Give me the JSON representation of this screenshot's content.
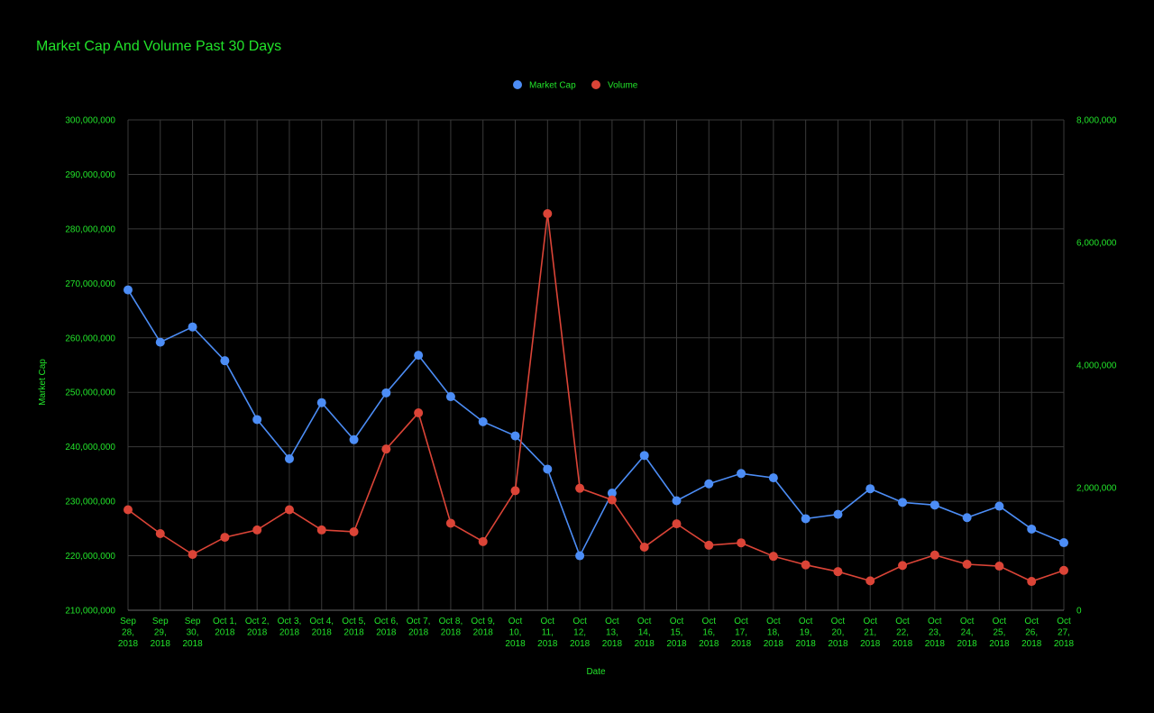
{
  "chart_data": {
    "type": "line",
    "title": "Market Cap And Volume Past 30 Days",
    "xlabel": "Date",
    "ylabel": "Market Cap",
    "y2label": "",
    "categories": [
      "Sep 28, 2018",
      "Sep 29, 2018",
      "Sep 30, 2018",
      "Oct 1, 2018",
      "Oct 2, 2018",
      "Oct 3, 2018",
      "Oct 4, 2018",
      "Oct 5, 2018",
      "Oct 6, 2018",
      "Oct 7, 2018",
      "Oct 8, 2018",
      "Oct 9, 2018",
      "Oct 10, 2018",
      "Oct 11, 2018",
      "Oct 12, 2018",
      "Oct 13, 2018",
      "Oct 14, 2018",
      "Oct 15, 2018",
      "Oct 16, 2018",
      "Oct 17, 2018",
      "Oct 18, 2018",
      "Oct 19, 2018",
      "Oct 20, 2018",
      "Oct 21, 2018",
      "Oct 22, 2018",
      "Oct 23, 2018",
      "Oct 24, 2018",
      "Oct 25, 2018",
      "Oct 26, 2018",
      "Oct 27, 2018"
    ],
    "x_tick_labels": [
      [
        "Sep",
        "28,",
        "2018"
      ],
      [
        "Sep",
        "29,",
        "2018"
      ],
      [
        "Sep",
        "30,",
        "2018"
      ],
      [
        "Oct 1,",
        "2018"
      ],
      [
        "Oct 2,",
        "2018"
      ],
      [
        "Oct 3,",
        "2018"
      ],
      [
        "Oct 4,",
        "2018"
      ],
      [
        "Oct 5,",
        "2018"
      ],
      [
        "Oct 6,",
        "2018"
      ],
      [
        "Oct 7,",
        "2018"
      ],
      [
        "Oct 8,",
        "2018"
      ],
      [
        "Oct 9,",
        "2018"
      ],
      [
        "Oct",
        "10,",
        "2018"
      ],
      [
        "Oct",
        "11,",
        "2018"
      ],
      [
        "Oct",
        "12,",
        "2018"
      ],
      [
        "Oct",
        "13,",
        "2018"
      ],
      [
        "Oct",
        "14,",
        "2018"
      ],
      [
        "Oct",
        "15,",
        "2018"
      ],
      [
        "Oct",
        "16,",
        "2018"
      ],
      [
        "Oct",
        "17,",
        "2018"
      ],
      [
        "Oct",
        "18,",
        "2018"
      ],
      [
        "Oct",
        "19,",
        "2018"
      ],
      [
        "Oct",
        "20,",
        "2018"
      ],
      [
        "Oct",
        "21,",
        "2018"
      ],
      [
        "Oct",
        "22,",
        "2018"
      ],
      [
        "Oct",
        "23,",
        "2018"
      ],
      [
        "Oct",
        "24,",
        "2018"
      ],
      [
        "Oct",
        "25,",
        "2018"
      ],
      [
        "Oct",
        "26,",
        "2018"
      ],
      [
        "Oct",
        "27,",
        "2018"
      ]
    ],
    "series": [
      {
        "name": "Market Cap",
        "axis": "left",
        "color": "#4c8df6",
        "values": [
          268800000,
          259200000,
          262000000,
          255800000,
          245000000,
          237800000,
          248100000,
          241300000,
          249900000,
          256800000,
          249200000,
          244600000,
          242000000,
          235900000,
          220000000,
          231500000,
          238400000,
          230100000,
          233200000,
          235100000,
          234300000,
          226800000,
          227600000,
          232300000,
          229800000,
          229300000,
          227000000,
          229100000,
          224900000,
          222400000
        ]
      },
      {
        "name": "Volume",
        "axis": "right",
        "color": "#db4437",
        "values": [
          1640000,
          1250000,
          910000,
          1190000,
          1310000,
          1640000,
          1310000,
          1280000,
          2630000,
          3220000,
          1420000,
          1120000,
          1950000,
          6470000,
          1990000,
          1800000,
          1030000,
          1410000,
          1060000,
          1100000,
          880000,
          740000,
          630000,
          480000,
          730000,
          900000,
          750000,
          720000,
          470000,
          650000
        ]
      }
    ],
    "ylim": [
      210000000,
      300000000
    ],
    "y_ticks": [
      210000000,
      220000000,
      230000000,
      240000000,
      250000000,
      260000000,
      270000000,
      280000000,
      290000000,
      300000000
    ],
    "y_tick_labels": [
      "210,000,000",
      "220,000,000",
      "230,000,000",
      "240,000,000",
      "250,000,000",
      "260,000,000",
      "270,000,000",
      "280,000,000",
      "290,000,000",
      "300,000,000"
    ],
    "y2lim": [
      0,
      8000000
    ],
    "y2_ticks": [
      0,
      2000000,
      4000000,
      6000000,
      8000000
    ],
    "y2_tick_labels": [
      "0",
      "2,000,000",
      "4,000,000",
      "6,000,000",
      "8,000,000"
    ],
    "grid": true,
    "legend_position": "top-center",
    "colors": {
      "background": "#000000",
      "text": "#22e32a",
      "grid": "#3a3a3a"
    }
  }
}
